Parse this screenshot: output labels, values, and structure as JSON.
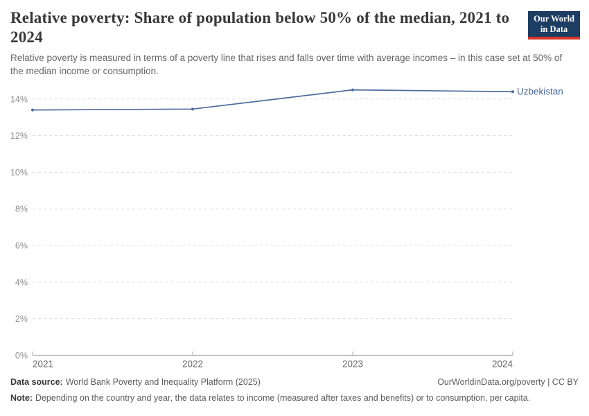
{
  "header": {
    "title": "Relative poverty: Share of population below 50% of the median, 2021 to 2024",
    "subtitle": "Relative poverty is measured in terms of a poverty line that rises and falls over time with average incomes – in this case set at 50% of the median income or consumption.",
    "logo": {
      "line1": "Our World",
      "line2": "in Data"
    }
  },
  "chart_data": {
    "type": "line",
    "title": "Relative poverty: Share of population below 50% of the median, 2021 to 2024",
    "x": [
      2021,
      2022,
      2023,
      2024
    ],
    "x_tick_labels": [
      "2021",
      "2022",
      "2023",
      "2024"
    ],
    "series": [
      {
        "name": "Uzbekistan",
        "color": "#4c6a9c",
        "values": [
          13.4,
          13.45,
          14.5,
          14.4
        ]
      }
    ],
    "y_ticks": [
      0,
      2,
      4,
      6,
      8,
      10,
      12,
      14
    ],
    "y_tick_labels": [
      "0%",
      "2%",
      "4%",
      "6%",
      "8%",
      "10%",
      "12%",
      "14%"
    ],
    "ylim": [
      0,
      15
    ],
    "grid": "horizontal-dashed",
    "legend_position": "right-of-line",
    "entity_label": "Uzbekistan"
  },
  "colors": {
    "line": "#4c6a9c",
    "gridline": "#dcdcdc",
    "axis": "#a5a5a5",
    "y_tick_text": "#8f8f8f",
    "x_tick_text": "#666666",
    "logo_bg": "#1d3d63",
    "logo_stripe": "#d7352b"
  },
  "footer": {
    "data_source_label": "Data source:",
    "data_source": "World Bank Poverty and Inequality Platform (2025)",
    "attribution": "OurWorldinData.org/poverty | CC BY",
    "note_label": "Note:",
    "note": "Depending on the country and year, the data relates to income (measured after taxes and benefits) or to consumption, per capita."
  }
}
